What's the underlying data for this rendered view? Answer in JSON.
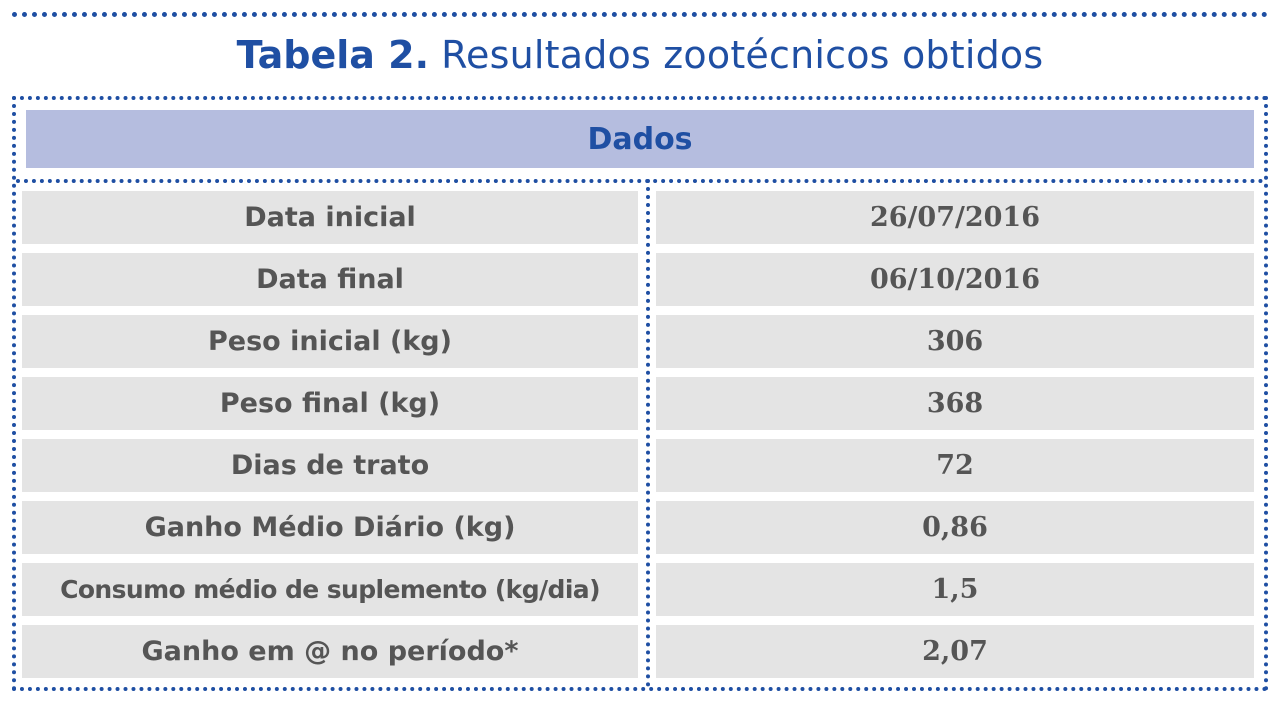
{
  "title": {
    "label": "Tabela 2.",
    "text": "Resultados zootécnicos obtidos"
  },
  "table": {
    "header": "Dados",
    "rows": [
      {
        "label": "Data inicial",
        "value": "26/07/2016"
      },
      {
        "label": "Data final",
        "value": "06/10/2016"
      },
      {
        "label": "Peso inicial (kg)",
        "value": "306"
      },
      {
        "label": "Peso final (kg)",
        "value": "368"
      },
      {
        "label": "Dias de trato",
        "value": "72"
      },
      {
        "label": "Ganho Médio Diário (kg)",
        "value": "0,86"
      },
      {
        "label": "Consumo médio de suplemento (kg/dia)",
        "value": "1,5"
      },
      {
        "label": "Ganho em @ no período*",
        "value": "2,07"
      }
    ]
  },
  "colors": {
    "accent": "#1f4fa3",
    "header_fill": "#b5bddf",
    "cell_fill": "#e4e4e4",
    "cell_text": "#555555"
  }
}
